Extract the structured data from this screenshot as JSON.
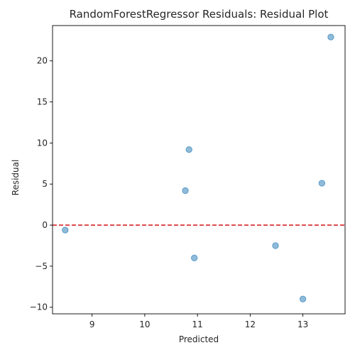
{
  "chart_data": {
    "type": "scatter",
    "title": "RandomForestRegressor Residuals: Residual Plot",
    "xlabel": "Predicted",
    "ylabel": "Residual",
    "xlim": [
      8.25,
      13.8
    ],
    "ylim": [
      -10.8,
      24.3
    ],
    "x_ticks": [
      9,
      10,
      11,
      12,
      13
    ],
    "y_ticks": [
      -10,
      -5,
      0,
      5,
      10,
      15,
      20
    ],
    "grid": false,
    "point_color": "#1f77b4",
    "reference_line": {
      "y": 0,
      "color": "#d62728",
      "style": "dashed"
    },
    "points": [
      {
        "x": 8.49,
        "y": -0.6
      },
      {
        "x": 10.77,
        "y": 4.2
      },
      {
        "x": 10.84,
        "y": 9.2
      },
      {
        "x": 10.94,
        "y": -4.0
      },
      {
        "x": 12.48,
        "y": -2.5
      },
      {
        "x": 13.0,
        "y": -9.0
      },
      {
        "x": 13.36,
        "y": 5.1
      },
      {
        "x": 13.53,
        "y": 22.9
      }
    ]
  }
}
